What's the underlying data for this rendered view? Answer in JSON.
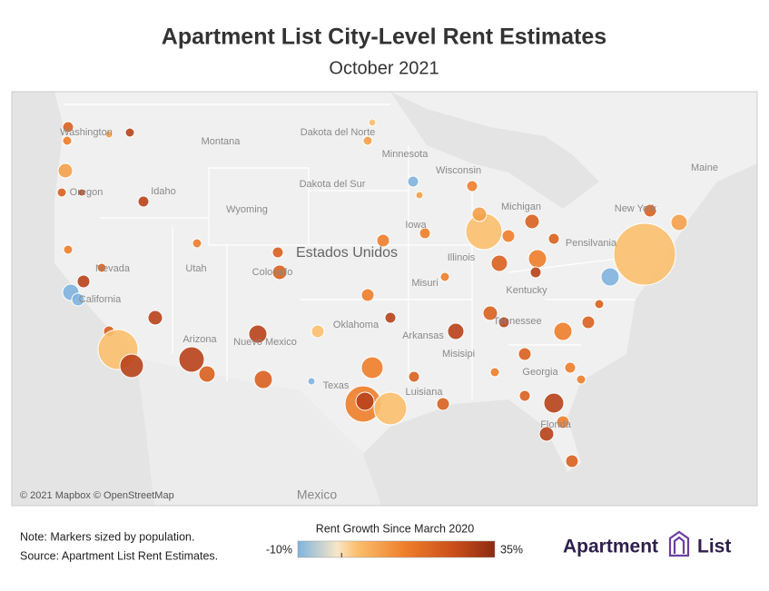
{
  "header": {
    "title": "Apartment List City-Level Rent Estimates",
    "subtitle": "October 2021"
  },
  "map": {
    "labels": [
      "Washington",
      "Montana",
      "Dakota del Norte",
      "Minnesota",
      "Wisconsin",
      "Dakota del Sur",
      "Idaho",
      "Oregon",
      "Wyoming",
      "Michigan",
      "Iowa",
      "New York",
      "Maine",
      "Nevada",
      "Utah",
      "Colorado",
      "Illinois",
      "Pensilvania",
      "Misuri",
      "California",
      "Kentucky",
      "Oklahoma",
      "Tennessee",
      "Arkansas",
      "Arizona",
      "Nuevo Mexico",
      "Misisipi",
      "Georgia",
      "Texas",
      "Luisiana",
      "Florida"
    ],
    "country": "Estados Unidos",
    "neighbor": "Mexico",
    "attribution": "© 2021 Mapbox © OpenStreetMap"
  },
  "footer": {
    "note": "Note: Markers sized by population.",
    "source": "Source: Apartment List Rent Estimates."
  },
  "legend": {
    "title": "Rent Growth Since March 2020",
    "min": {
      "value": -10,
      "label": "-10%"
    },
    "max": {
      "value": 35,
      "label": "35%"
    },
    "ticks": [
      0
    ]
  },
  "logo": {
    "word1": "Apartment",
    "word2": "List"
  }
}
